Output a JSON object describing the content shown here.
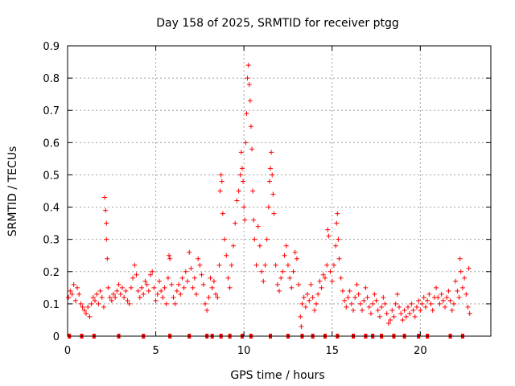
{
  "chart_data": {
    "type": "scatter",
    "title": "Day 158 of 2025, SRMTID for receiver ptgg",
    "xlabel": "GPS time / hours",
    "ylabel": "SRMTID / TECUs",
    "xlim": [
      0,
      24
    ],
    "ylim": [
      0,
      0.9
    ],
    "x_ticks": [
      0,
      5,
      10,
      15,
      20
    ],
    "y_ticks": [
      0,
      0.1,
      0.2,
      0.3,
      0.4,
      0.5,
      0.6,
      0.7,
      0.8,
      0.9
    ],
    "grid": true,
    "marker": "plus",
    "color": "#ff0000",
    "series": [
      {
        "name": "SRMTID",
        "points": [
          [
            0.05,
            0.12
          ],
          [
            0.15,
            0.14
          ],
          [
            0.25,
            0.13
          ],
          [
            0.35,
            0.16
          ],
          [
            0.45,
            0.11
          ],
          [
            0.55,
            0.15
          ],
          [
            0.65,
            0.13
          ],
          [
            0.75,
            0.1
          ],
          [
            0.85,
            0.09
          ],
          [
            0.95,
            0.08
          ],
          [
            1.05,
            0.07
          ],
          [
            1.15,
            0.09
          ],
          [
            1.25,
            0.06
          ],
          [
            1.35,
            0.1
          ],
          [
            1.45,
            0.12
          ],
          [
            1.55,
            0.11
          ],
          [
            1.65,
            0.13
          ],
          [
            1.75,
            0.1
          ],
          [
            1.85,
            0.14
          ],
          [
            1.95,
            0.12
          ],
          [
            2.05,
            0.09
          ],
          [
            2.1,
            0.43
          ],
          [
            2.15,
            0.39
          ],
          [
            2.2,
            0.35
          ],
          [
            2.2,
            0.3
          ],
          [
            2.25,
            0.24
          ],
          [
            2.3,
            0.15
          ],
          [
            2.4,
            0.12
          ],
          [
            2.5,
            0.11
          ],
          [
            2.6,
            0.13
          ],
          [
            2.7,
            0.12
          ],
          [
            2.8,
            0.14
          ],
          [
            2.9,
            0.16
          ],
          [
            3.0,
            0.13
          ],
          [
            3.1,
            0.15
          ],
          [
            3.2,
            0.12
          ],
          [
            3.3,
            0.14
          ],
          [
            3.4,
            0.11
          ],
          [
            3.5,
            0.1
          ],
          [
            3.6,
            0.15
          ],
          [
            3.7,
            0.18
          ],
          [
            3.8,
            0.22
          ],
          [
            3.9,
            0.19
          ],
          [
            4.0,
            0.14
          ],
          [
            4.1,
            0.12
          ],
          [
            4.2,
            0.15
          ],
          [
            4.3,
            0.13
          ],
          [
            4.4,
            0.17
          ],
          [
            4.5,
            0.16
          ],
          [
            4.6,
            0.14
          ],
          [
            4.7,
            0.19
          ],
          [
            4.8,
            0.2
          ],
          [
            4.9,
            0.15
          ],
          [
            5.0,
            0.11
          ],
          [
            5.1,
            0.13
          ],
          [
            5.2,
            0.17
          ],
          [
            5.3,
            0.14
          ],
          [
            5.4,
            0.12
          ],
          [
            5.5,
            0.15
          ],
          [
            5.6,
            0.1
          ],
          [
            5.7,
            0.18
          ],
          [
            5.75,
            0.25
          ],
          [
            5.8,
            0.24
          ],
          [
            5.9,
            0.16
          ],
          [
            6.0,
            0.12
          ],
          [
            6.1,
            0.1
          ],
          [
            6.2,
            0.14
          ],
          [
            6.3,
            0.16
          ],
          [
            6.4,
            0.13
          ],
          [
            6.5,
            0.18
          ],
          [
            6.6,
            0.15
          ],
          [
            6.7,
            0.2
          ],
          [
            6.8,
            0.17
          ],
          [
            6.9,
            0.26
          ],
          [
            7.0,
            0.21
          ],
          [
            7.1,
            0.15
          ],
          [
            7.2,
            0.18
          ],
          [
            7.3,
            0.13
          ],
          [
            7.4,
            0.24
          ],
          [
            7.5,
            0.22
          ],
          [
            7.6,
            0.19
          ],
          [
            7.7,
            0.16
          ],
          [
            7.8,
            0.1
          ],
          [
            7.9,
            0.08
          ],
          [
            8.0,
            0.12
          ],
          [
            8.1,
            0.18
          ],
          [
            8.2,
            0.15
          ],
          [
            8.3,
            0.17
          ],
          [
            8.4,
            0.13
          ],
          [
            8.5,
            0.12
          ],
          [
            8.6,
            0.22
          ],
          [
            8.65,
            0.45
          ],
          [
            8.7,
            0.5
          ],
          [
            8.75,
            0.48
          ],
          [
            8.8,
            0.38
          ],
          [
            8.9,
            0.3
          ],
          [
            9.0,
            0.25
          ],
          [
            9.1,
            0.18
          ],
          [
            9.2,
            0.15
          ],
          [
            9.3,
            0.22
          ],
          [
            9.4,
            0.28
          ],
          [
            9.5,
            0.35
          ],
          [
            9.6,
            0.42
          ],
          [
            9.7,
            0.45
          ],
          [
            9.8,
            0.5
          ],
          [
            9.85,
            0.57
          ],
          [
            9.9,
            0.52
          ],
          [
            9.95,
            0.48
          ],
          [
            10.0,
            0.4
          ],
          [
            10.05,
            0.36
          ],
          [
            10.1,
            0.6
          ],
          [
            10.15,
            0.69
          ],
          [
            10.2,
            0.8
          ],
          [
            10.25,
            0.84
          ],
          [
            10.3,
            0.78
          ],
          [
            10.35,
            0.73
          ],
          [
            10.4,
            0.65
          ],
          [
            10.45,
            0.58
          ],
          [
            10.5,
            0.45
          ],
          [
            10.55,
            0.36
          ],
          [
            10.6,
            0.3
          ],
          [
            10.7,
            0.22
          ],
          [
            10.8,
            0.34
          ],
          [
            10.9,
            0.28
          ],
          [
            11.0,
            0.2
          ],
          [
            11.1,
            0.17
          ],
          [
            11.2,
            0.22
          ],
          [
            11.3,
            0.3
          ],
          [
            11.4,
            0.4
          ],
          [
            11.45,
            0.48
          ],
          [
            11.5,
            0.52
          ],
          [
            11.55,
            0.57
          ],
          [
            11.6,
            0.5
          ],
          [
            11.65,
            0.44
          ],
          [
            11.7,
            0.38
          ],
          [
            11.8,
            0.22
          ],
          [
            11.9,
            0.16
          ],
          [
            12.0,
            0.14
          ],
          [
            12.1,
            0.18
          ],
          [
            12.2,
            0.2
          ],
          [
            12.3,
            0.25
          ],
          [
            12.4,
            0.28
          ],
          [
            12.5,
            0.22
          ],
          [
            12.6,
            0.18
          ],
          [
            12.7,
            0.15
          ],
          [
            12.8,
            0.2
          ],
          [
            12.9,
            0.26
          ],
          [
            13.0,
            0.24
          ],
          [
            13.1,
            0.16
          ],
          [
            13.2,
            0.06
          ],
          [
            13.25,
            0.03
          ],
          [
            13.3,
            0.1
          ],
          [
            13.4,
            0.12
          ],
          [
            13.5,
            0.09
          ],
          [
            13.6,
            0.13
          ],
          [
            13.7,
            0.11
          ],
          [
            13.8,
            0.16
          ],
          [
            13.9,
            0.12
          ],
          [
            14.0,
            0.08
          ],
          [
            14.1,
            0.1
          ],
          [
            14.2,
            0.13
          ],
          [
            14.3,
            0.17
          ],
          [
            14.4,
            0.15
          ],
          [
            14.5,
            0.19
          ],
          [
            14.6,
            0.18
          ],
          [
            14.7,
            0.22
          ],
          [
            14.75,
            0.33
          ],
          [
            14.8,
            0.31
          ],
          [
            14.9,
            0.2
          ],
          [
            15.0,
            0.17
          ],
          [
            15.1,
            0.22
          ],
          [
            15.2,
            0.28
          ],
          [
            15.25,
            0.35
          ],
          [
            15.3,
            0.38
          ],
          [
            15.35,
            0.3
          ],
          [
            15.4,
            0.24
          ],
          [
            15.5,
            0.18
          ],
          [
            15.6,
            0.14
          ],
          [
            15.7,
            0.11
          ],
          [
            15.8,
            0.09
          ],
          [
            15.9,
            0.12
          ],
          [
            16.0,
            0.14
          ],
          [
            16.1,
            0.1
          ],
          [
            16.2,
            0.08
          ],
          [
            16.3,
            0.12
          ],
          [
            16.4,
            0.16
          ],
          [
            16.5,
            0.13
          ],
          [
            16.6,
            0.1
          ],
          [
            16.7,
            0.08
          ],
          [
            16.8,
            0.11
          ],
          [
            16.9,
            0.15
          ],
          [
            17.0,
            0.12
          ],
          [
            17.1,
            0.09
          ],
          [
            17.2,
            0.07
          ],
          [
            17.3,
            0.1
          ],
          [
            17.4,
            0.13
          ],
          [
            17.5,
            0.11
          ],
          [
            17.6,
            0.08
          ],
          [
            17.7,
            0.06
          ],
          [
            17.8,
            0.09
          ],
          [
            17.9,
            0.12
          ],
          [
            18.0,
            0.1
          ],
          [
            18.1,
            0.07
          ],
          [
            18.2,
            0.04
          ],
          [
            18.3,
            0.05
          ],
          [
            18.4,
            0.08
          ],
          [
            18.5,
            0.06
          ],
          [
            18.6,
            0.1
          ],
          [
            18.7,
            0.13
          ],
          [
            18.8,
            0.09
          ],
          [
            18.9,
            0.07
          ],
          [
            19.0,
            0.05
          ],
          [
            19.1,
            0.08
          ],
          [
            19.2,
            0.06
          ],
          [
            19.3,
            0.09
          ],
          [
            19.4,
            0.07
          ],
          [
            19.5,
            0.1
          ],
          [
            19.6,
            0.08
          ],
          [
            19.7,
            0.06
          ],
          [
            19.8,
            0.09
          ],
          [
            19.9,
            0.11
          ],
          [
            20.0,
            0.08
          ],
          [
            20.1,
            0.1
          ],
          [
            20.2,
            0.12
          ],
          [
            20.3,
            0.09
          ],
          [
            20.4,
            0.11
          ],
          [
            20.5,
            0.13
          ],
          [
            20.6,
            0.1
          ],
          [
            20.7,
            0.08
          ],
          [
            20.8,
            0.12
          ],
          [
            20.9,
            0.15
          ],
          [
            21.0,
            0.12
          ],
          [
            21.1,
            0.1
          ],
          [
            21.2,
            0.13
          ],
          [
            21.3,
            0.11
          ],
          [
            21.4,
            0.09
          ],
          [
            21.5,
            0.12
          ],
          [
            21.6,
            0.14
          ],
          [
            21.7,
            0.11
          ],
          [
            21.8,
            0.08
          ],
          [
            21.9,
            0.1
          ],
          [
            22.0,
            0.17
          ],
          [
            22.1,
            0.14
          ],
          [
            22.2,
            0.12
          ],
          [
            22.25,
            0.24
          ],
          [
            22.3,
            0.2
          ],
          [
            22.4,
            0.15
          ],
          [
            22.5,
            0.18
          ],
          [
            22.6,
            0.13
          ],
          [
            22.7,
            0.09
          ],
          [
            22.75,
            0.21
          ],
          [
            22.8,
            0.07
          ]
        ]
      }
    ],
    "zero_markers": [
      0.1,
      0.8,
      1.5,
      2.9,
      4.3,
      5.8,
      6.9,
      7.9,
      8.2,
      8.7,
      9.2,
      9.9,
      10.4,
      11.5,
      12.5,
      13.3,
      13.9,
      14.6,
      15.3,
      16.2,
      16.9,
      17.3,
      17.8,
      18.5,
      19.1,
      19.9,
      20.4,
      21.7,
      22.4
    ]
  }
}
